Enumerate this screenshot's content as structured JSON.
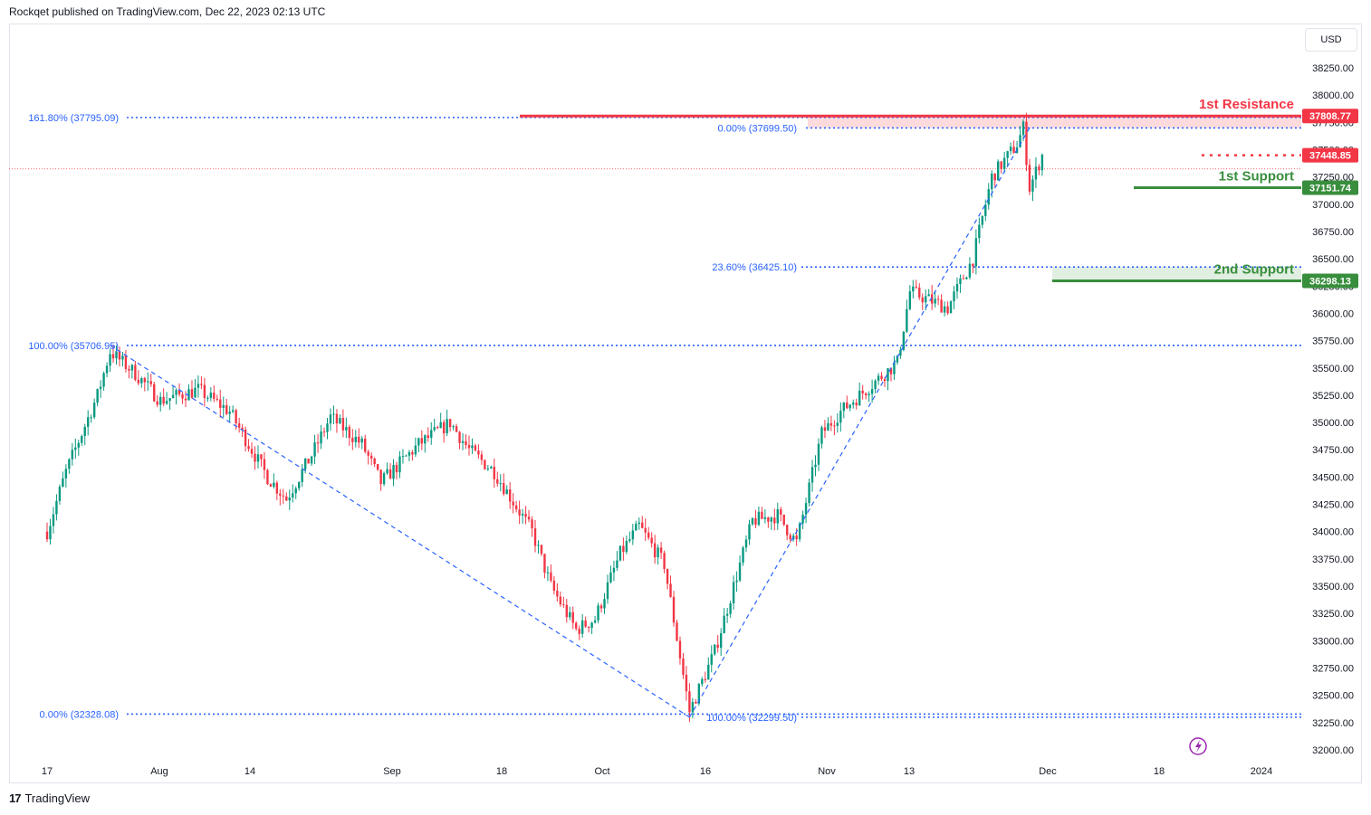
{
  "header": {
    "publisher_text": "Rockqet published on TradingView.com, Dec 22, 2023 02:13 UTC"
  },
  "currency": "USD",
  "footer": {
    "brand": "TradingView",
    "logo_icon": "tradingview-logo-icon"
  },
  "colors": {
    "up": "#089981",
    "down": "#f23645",
    "fib": "#2962ff",
    "resistance": "#f23645",
    "support": "#388e3c",
    "axis_text": "#131722",
    "price_line": "#f23645"
  },
  "chart_data": {
    "type": "candlestick",
    "price_axis": {
      "ticks": [
        "38250.00",
        "38000.00",
        "37750.00",
        "37500.00",
        "37250.00",
        "37000.00",
        "36750.00",
        "36500.00",
        "36250.00",
        "36000.00",
        "35750.00",
        "35500.00",
        "35250.00",
        "35000.00",
        "34750.00",
        "34500.00",
        "34250.00",
        "34000.00",
        "33750.00",
        "33500.00",
        "33250.00",
        "33000.00",
        "32750.00",
        "32500.00",
        "32250.00",
        "32000.00"
      ],
      "range": [
        32000,
        38250
      ]
    },
    "time_axis": {
      "ticks": [
        "17",
        "Aug",
        "14",
        "Sep",
        "18",
        "Oct",
        "16",
        "Nov",
        "13",
        "Dec",
        "18",
        "2024"
      ]
    },
    "date_range": [
      "2023-07-17",
      "2023-12-22"
    ],
    "annotations": [
      {
        "label": "1st Resistance",
        "price": 37808.77,
        "price_label": "37808.77",
        "kind": "resistance"
      },
      {
        "label": "1st Support",
        "price": 37151.74,
        "price_label": "37151.74",
        "kind": "support"
      },
      {
        "label": "2nd Support",
        "price": 36298.13,
        "price_label": "36298.13",
        "kind": "support"
      }
    ],
    "current_price": {
      "value": 37448.85,
      "label": "37448.85"
    },
    "fib_levels": [
      {
        "label": "161.80% (37795.09)",
        "price": 37795.09
      },
      {
        "label": "0.00% (37699.50)",
        "price": 37699.5
      },
      {
        "label": "23.60% (36425.10)",
        "price": 36425.1
      },
      {
        "label": "100.00% (35706.95)",
        "price": 35706.95
      },
      {
        "label": "0.00% (32328.08)",
        "price": 32328.08
      },
      {
        "label": "100.00% (32299.50)",
        "price": 32299.5
      }
    ],
    "trendlines": [
      {
        "from": [
          "2023-07-27",
          35706.95
        ],
        "to": [
          "2023-10-27",
          32299.5
        ]
      },
      {
        "from": [
          "2023-10-27",
          32299.5
        ],
        "to": [
          "2023-12-20",
          37699.5
        ]
      }
    ],
    "close_waypoints": [
      [
        "2023-07-17",
        34000
      ],
      [
        "2023-07-20",
        34550
      ],
      [
        "2023-07-25",
        35250
      ],
      [
        "2023-07-27",
        35650
      ],
      [
        "2023-07-31",
        35450
      ],
      [
        "2023-08-04",
        35200
      ],
      [
        "2023-08-10",
        35300
      ],
      [
        "2023-08-15",
        35100
      ],
      [
        "2023-08-21",
        34500
      ],
      [
        "2023-08-24",
        34300
      ],
      [
        "2023-08-28",
        34700
      ],
      [
        "2023-08-31",
        35050
      ],
      [
        "2023-09-05",
        34800
      ],
      [
        "2023-09-08",
        34450
      ],
      [
        "2023-09-14",
        34800
      ],
      [
        "2023-09-19",
        35000
      ],
      [
        "2023-09-22",
        34750
      ],
      [
        "2023-09-26",
        34550
      ],
      [
        "2023-10-02",
        34000
      ],
      [
        "2023-10-05",
        33500
      ],
      [
        "2023-10-09",
        33100
      ],
      [
        "2023-10-12",
        33200
      ],
      [
        "2023-10-16",
        33800
      ],
      [
        "2023-10-19",
        34050
      ],
      [
        "2023-10-23",
        33700
      ],
      [
        "2023-10-27",
        32350
      ],
      [
        "2023-10-31",
        32900
      ],
      [
        "2023-11-06",
        34100
      ],
      [
        "2023-11-10",
        34150
      ],
      [
        "2023-11-13",
        33900
      ],
      [
        "2023-11-17",
        34900
      ],
      [
        "2023-11-20",
        35100
      ],
      [
        "2023-11-24",
        35300
      ],
      [
        "2023-11-29",
        35550
      ],
      [
        "2023-12-01",
        36200
      ],
      [
        "2023-12-05",
        36100
      ],
      [
        "2023-12-07",
        36050
      ],
      [
        "2023-12-11",
        36500
      ],
      [
        "2023-12-14",
        37250
      ],
      [
        "2023-12-18",
        37550
      ],
      [
        "2023-12-19",
        37700
      ],
      [
        "2023-12-20",
        37150
      ],
      [
        "2023-12-22",
        37449
      ]
    ]
  }
}
